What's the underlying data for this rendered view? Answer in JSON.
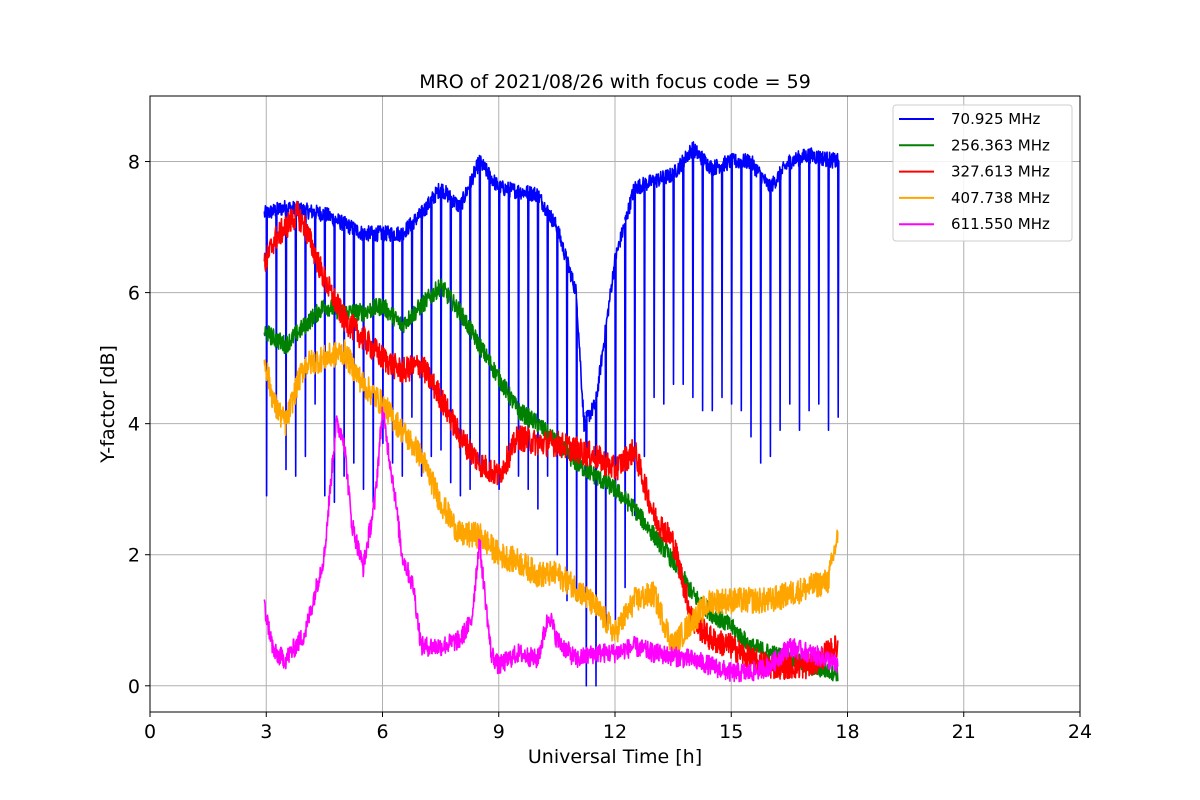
{
  "chart_data": {
    "type": "line",
    "title": "MRO of 2021/08/26 with focus code = 59",
    "xlabel": "Universal Time [h]",
    "ylabel": "Y-factor [dB]",
    "xlim": [
      0,
      24
    ],
    "ylim": [
      -0.4,
      9.0
    ],
    "xticks": [
      0,
      3,
      6,
      9,
      12,
      15,
      18,
      21,
      24
    ],
    "yticks": [
      0,
      2,
      4,
      6,
      8
    ],
    "grid": true,
    "legend_position": "top-right",
    "series": [
      {
        "name": "70.925 MHz",
        "color": "#0000ff",
        "baseline": [
          [
            2.95,
            7.2
          ],
          [
            3.5,
            7.3
          ],
          [
            4.5,
            7.2
          ],
          [
            5.5,
            6.9
          ],
          [
            6.5,
            6.9
          ],
          [
            7.0,
            7.2
          ],
          [
            7.5,
            7.6
          ],
          [
            8.0,
            7.3
          ],
          [
            8.5,
            8.0
          ],
          [
            9.0,
            7.6
          ],
          [
            10.0,
            7.5
          ],
          [
            10.5,
            7.0
          ],
          [
            11.0,
            6.0
          ],
          [
            11.2,
            4.0
          ],
          [
            11.5,
            4.3
          ],
          [
            12.0,
            6.5
          ],
          [
            12.5,
            7.6
          ],
          [
            13.5,
            7.8
          ],
          [
            14.0,
            8.2
          ],
          [
            14.5,
            7.9
          ],
          [
            15.0,
            8.0
          ],
          [
            15.5,
            8.0
          ],
          [
            16.0,
            7.6
          ],
          [
            16.5,
            8.0
          ],
          [
            17.0,
            8.1
          ],
          [
            17.75,
            8.0
          ]
        ],
        "dips": [
          [
            3.0,
            2.9
          ],
          [
            3.25,
            4.1
          ],
          [
            3.5,
            3.3
          ],
          [
            3.75,
            3.2
          ],
          [
            4.0,
            3.5
          ],
          [
            4.25,
            4.3
          ],
          [
            4.5,
            2.9
          ],
          [
            4.75,
            2.8
          ],
          [
            5.0,
            3.2
          ],
          [
            5.25,
            3.4
          ],
          [
            5.5,
            3.0
          ],
          [
            5.75,
            2.8
          ],
          [
            6.0,
            3.7
          ],
          [
            6.25,
            3.4
          ],
          [
            6.5,
            3.2
          ],
          [
            6.75,
            4.1
          ],
          [
            7.0,
            3.2
          ],
          [
            7.25,
            3.5
          ],
          [
            7.5,
            3.6
          ],
          [
            7.75,
            3.1
          ],
          [
            8.0,
            2.9
          ],
          [
            8.25,
            3.0
          ],
          [
            8.5,
            3.3
          ],
          [
            8.75,
            3.2
          ],
          [
            9.0,
            3.0
          ],
          [
            9.25,
            3.5
          ],
          [
            9.5,
            3.2
          ],
          [
            9.75,
            3.0
          ],
          [
            10.0,
            2.7
          ],
          [
            10.25,
            3.2
          ],
          [
            10.5,
            2.0
          ],
          [
            10.75,
            1.3
          ],
          [
            11.0,
            1.3
          ],
          [
            11.25,
            0.0
          ],
          [
            11.5,
            0.0
          ],
          [
            11.75,
            0.9
          ],
          [
            12.0,
            1.0
          ],
          [
            12.25,
            1.5
          ],
          [
            12.5,
            2.6
          ],
          [
            12.75,
            3.5
          ],
          [
            13.0,
            4.4
          ],
          [
            13.25,
            4.3
          ],
          [
            13.5,
            4.6
          ],
          [
            13.75,
            4.6
          ],
          [
            14.0,
            4.4
          ],
          [
            14.25,
            4.2
          ],
          [
            14.5,
            4.2
          ],
          [
            14.75,
            4.4
          ],
          [
            15.0,
            4.3
          ],
          [
            15.25,
            4.2
          ],
          [
            15.5,
            3.8
          ],
          [
            15.75,
            3.4
          ],
          [
            16.0,
            3.5
          ],
          [
            16.25,
            3.9
          ],
          [
            16.5,
            4.3
          ],
          [
            16.75,
            3.9
          ],
          [
            17.0,
            4.2
          ],
          [
            17.25,
            4.3
          ],
          [
            17.5,
            3.9
          ],
          [
            17.75,
            4.1
          ]
        ]
      },
      {
        "name": "256.363 MHz",
        "color": "#008000",
        "baseline": [
          [
            2.95,
            5.4
          ],
          [
            3.5,
            5.2
          ],
          [
            4.0,
            5.5
          ],
          [
            4.5,
            5.8
          ],
          [
            5.0,
            5.7
          ],
          [
            5.5,
            5.7
          ],
          [
            6.0,
            5.8
          ],
          [
            6.5,
            5.5
          ],
          [
            7.0,
            5.8
          ],
          [
            7.5,
            6.1
          ],
          [
            8.0,
            5.7
          ],
          [
            8.5,
            5.2
          ],
          [
            9.0,
            4.7
          ],
          [
            9.5,
            4.2
          ],
          [
            10.0,
            4.0
          ],
          [
            10.5,
            3.7
          ],
          [
            11.0,
            3.4
          ],
          [
            11.5,
            3.2
          ],
          [
            12.0,
            3.0
          ],
          [
            12.5,
            2.7
          ],
          [
            13.0,
            2.3
          ],
          [
            13.5,
            1.9
          ],
          [
            14.0,
            1.4
          ],
          [
            14.5,
            1.1
          ],
          [
            15.0,
            0.9
          ],
          [
            15.5,
            0.6
          ],
          [
            16.0,
            0.5
          ],
          [
            16.5,
            0.4
          ],
          [
            17.0,
            0.3
          ],
          [
            17.75,
            0.2
          ]
        ]
      },
      {
        "name": "327.613 MHz",
        "color": "#ff0000",
        "baseline": [
          [
            2.95,
            6.4
          ],
          [
            3.2,
            6.8
          ],
          [
            3.5,
            7.0
          ],
          [
            3.8,
            7.2
          ],
          [
            4.0,
            7.0
          ],
          [
            4.5,
            6.2
          ],
          [
            5.0,
            5.6
          ],
          [
            5.5,
            5.3
          ],
          [
            6.0,
            5.0
          ],
          [
            6.5,
            4.8
          ],
          [
            7.0,
            4.9
          ],
          [
            7.5,
            4.4
          ],
          [
            8.0,
            3.8
          ],
          [
            8.5,
            3.4
          ],
          [
            9.0,
            3.2
          ],
          [
            9.5,
            3.8
          ],
          [
            10.0,
            3.7
          ],
          [
            10.5,
            3.7
          ],
          [
            11.0,
            3.6
          ],
          [
            11.5,
            3.5
          ],
          [
            12.0,
            3.3
          ],
          [
            12.5,
            3.6
          ],
          [
            13.0,
            2.6
          ],
          [
            13.5,
            2.2
          ],
          [
            14.0,
            1.0
          ],
          [
            14.5,
            0.7
          ],
          [
            15.0,
            0.6
          ],
          [
            15.5,
            0.4
          ],
          [
            16.0,
            0.3
          ],
          [
            16.5,
            0.3
          ],
          [
            17.0,
            0.3
          ],
          [
            17.5,
            0.5
          ],
          [
            17.75,
            0.6
          ]
        ]
      },
      {
        "name": "407.738 MHz",
        "color": "#ffa500",
        "baseline": [
          [
            2.95,
            5.0
          ],
          [
            3.2,
            4.3
          ],
          [
            3.5,
            4.0
          ],
          [
            3.8,
            4.6
          ],
          [
            4.0,
            4.9
          ],
          [
            4.5,
            5.0
          ],
          [
            5.0,
            5.1
          ],
          [
            5.5,
            4.6
          ],
          [
            6.0,
            4.3
          ],
          [
            6.5,
            3.9
          ],
          [
            7.0,
            3.5
          ],
          [
            7.5,
            2.8
          ],
          [
            8.0,
            2.3
          ],
          [
            8.5,
            2.3
          ],
          [
            9.0,
            2.0
          ],
          [
            9.5,
            1.9
          ],
          [
            10.0,
            1.7
          ],
          [
            10.5,
            1.7
          ],
          [
            11.0,
            1.5
          ],
          [
            11.5,
            1.2
          ],
          [
            12.0,
            0.8
          ],
          [
            12.5,
            1.3
          ],
          [
            13.0,
            1.4
          ],
          [
            13.5,
            0.6
          ],
          [
            14.0,
            1.0
          ],
          [
            14.5,
            1.3
          ],
          [
            15.0,
            1.3
          ],
          [
            15.5,
            1.3
          ],
          [
            16.0,
            1.3
          ],
          [
            16.5,
            1.4
          ],
          [
            17.0,
            1.5
          ],
          [
            17.5,
            1.6
          ],
          [
            17.75,
            2.3
          ]
        ]
      },
      {
        "name": "611.550 MHz",
        "color": "#ff00ff",
        "baseline": [
          [
            2.95,
            1.2
          ],
          [
            3.2,
            0.5
          ],
          [
            3.5,
            0.4
          ],
          [
            4.0,
            0.8
          ],
          [
            4.5,
            2.0
          ],
          [
            4.8,
            4.0
          ],
          [
            5.0,
            3.8
          ],
          [
            5.2,
            2.5
          ],
          [
            5.5,
            1.8
          ],
          [
            5.8,
            2.8
          ],
          [
            6.0,
            4.2
          ],
          [
            6.3,
            3.0
          ],
          [
            6.5,
            2.0
          ],
          [
            6.8,
            1.5
          ],
          [
            7.0,
            0.6
          ],
          [
            7.5,
            0.6
          ],
          [
            8.0,
            0.7
          ],
          [
            8.3,
            1.0
          ],
          [
            8.5,
            2.2
          ],
          [
            8.8,
            0.5
          ],
          [
            9.0,
            0.3
          ],
          [
            9.5,
            0.5
          ],
          [
            10.0,
            0.4
          ],
          [
            10.3,
            1.1
          ],
          [
            10.5,
            0.7
          ],
          [
            11.0,
            0.4
          ],
          [
            11.5,
            0.5
          ],
          [
            12.0,
            0.5
          ],
          [
            12.5,
            0.6
          ],
          [
            13.0,
            0.5
          ],
          [
            14.0,
            0.4
          ],
          [
            15.0,
            0.2
          ],
          [
            15.5,
            0.2
          ],
          [
            16.0,
            0.3
          ],
          [
            16.5,
            0.6
          ],
          [
            17.0,
            0.5
          ],
          [
            17.5,
            0.4
          ],
          [
            17.75,
            0.3
          ]
        ]
      }
    ]
  }
}
